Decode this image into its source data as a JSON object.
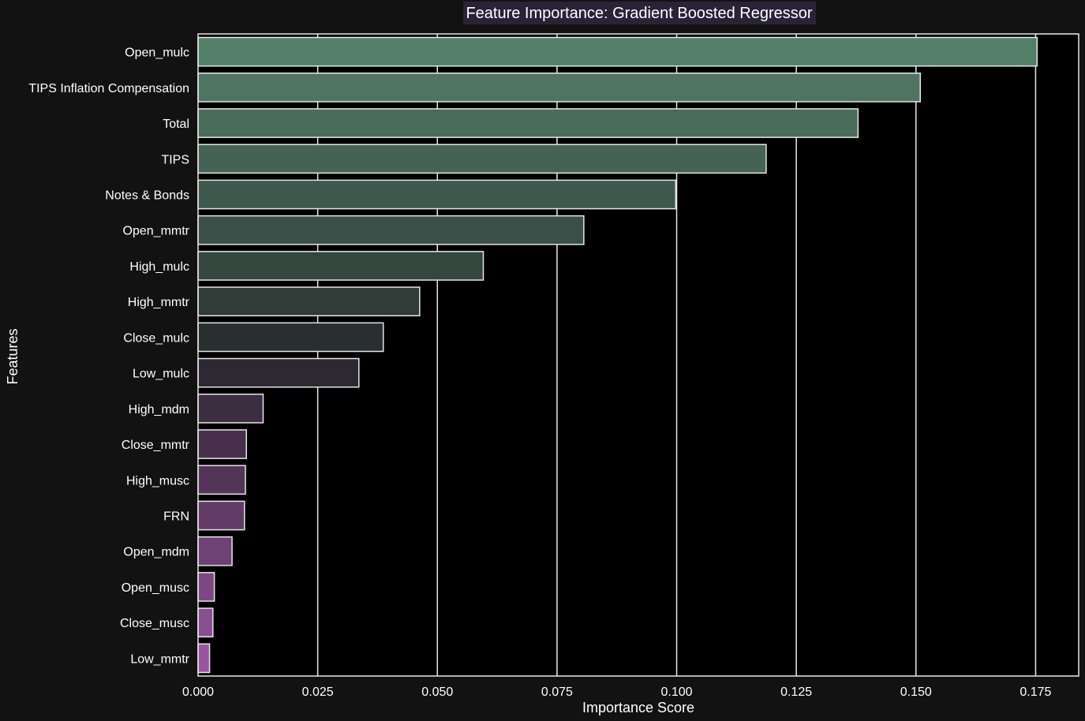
{
  "chart_data": {
    "type": "bar",
    "orientation": "horizontal",
    "title": "Feature Importance: Gradient Boosted Regressor",
    "xlabel": "Importance Score",
    "ylabel": "Features",
    "xlim": [
      0,
      0.184
    ],
    "xticks": [
      0.0,
      0.025,
      0.05,
      0.075,
      0.1,
      0.125,
      0.15,
      0.175
    ],
    "xtick_labels": [
      "0.000",
      "0.025",
      "0.050",
      "0.075",
      "0.100",
      "0.125",
      "0.150",
      "0.175"
    ],
    "grid": true,
    "categories": [
      "Open_mulc",
      "TIPS Inflation Compensation",
      "Total",
      "TIPS",
      "Notes & Bonds",
      "Open_mmtr",
      "High_mulc",
      "High_mmtr",
      "Close_mulc",
      "Low_mulc",
      "High_mdm",
      "Close_mmtr",
      "High_musc",
      "FRN",
      "Open_mdm",
      "Open_musc",
      "Close_musc",
      "Low_mmtr"
    ],
    "values": [
      0.1753,
      0.1509,
      0.1379,
      0.1187,
      0.0998,
      0.0806,
      0.0596,
      0.0463,
      0.0387,
      0.0336,
      0.0136,
      0.0101,
      0.0099,
      0.0097,
      0.0071,
      0.0034,
      0.0031,
      0.0024
    ],
    "colors": [
      "#537f68",
      "#4f7562",
      "#4a6c5b",
      "#456355",
      "#40594e",
      "#3a4f47",
      "#35463f",
      "#2f3c37",
      "#292f2f",
      "#2e2833",
      "#3c2d41",
      "#48304d",
      "#543559",
      "#623c67",
      "#6e4275",
      "#7c4883",
      "#8a4e92",
      "#9a55a0"
    ]
  }
}
